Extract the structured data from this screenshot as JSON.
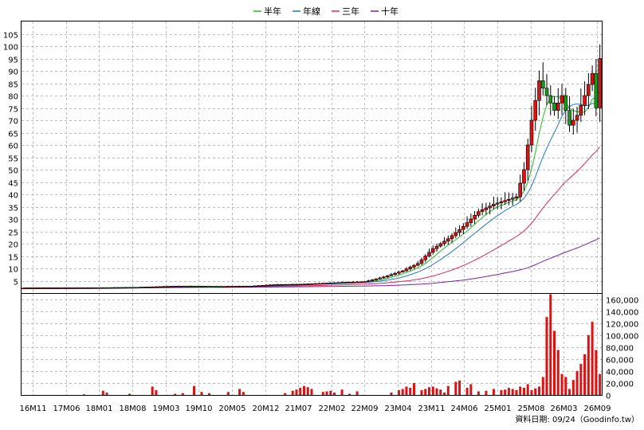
{
  "legend": [
    {
      "label": "半年",
      "color": "#22bb22"
    },
    {
      "label": "年線",
      "color": "#2277cc"
    },
    {
      "label": "三年",
      "color": "#dd2266"
    },
    {
      "label": "十年",
      "color": "#7722aa"
    }
  ],
  "footer": "資料日期: 09/24（Goodinfo.tw）",
  "chart_data": {
    "type": "candlestick+bar",
    "price_axis": {
      "ticks": [
        5,
        10,
        15,
        20,
        25,
        30,
        35,
        40,
        45,
        50,
        55,
        60,
        65,
        70,
        75,
        80,
        85,
        90,
        95,
        100,
        105
      ]
    },
    "volume_axis": {
      "ticks": [
        "0",
        "20,000",
        "40,000",
        "60,000",
        "80,000",
        "100,000",
        "120,000",
        "140,000",
        "160,000"
      ]
    },
    "x_labels": [
      "16M11",
      "17M06",
      "18M01",
      "18M08",
      "19M03",
      "19M10",
      "20M05",
      "20M12",
      "21M07",
      "22M02",
      "22M09",
      "23M04",
      "23M11",
      "24M06",
      "25M01",
      "25M08",
      "26M03",
      "26M09"
    ],
    "grid": true,
    "monthly": [
      {
        "o": 2.1,
        "h": 2.3,
        "l": 1.9,
        "c": 2.1,
        "v": 0
      },
      {
        "o": 2.1,
        "h": 2.3,
        "l": 1.9,
        "c": 2.1,
        "v": 0
      },
      {
        "o": 2.1,
        "h": 2.3,
        "l": 1.9,
        "c": 2.1,
        "v": 0
      },
      {
        "o": 2.1,
        "h": 2.3,
        "l": 1.9,
        "c": 2.1,
        "v": 0
      },
      {
        "o": 2.1,
        "h": 2.3,
        "l": 1.9,
        "c": 2.1,
        "v": 0
      },
      {
        "o": 2.1,
        "h": 2.3,
        "l": 1.9,
        "c": 2.1,
        "v": 0
      },
      {
        "o": 2.1,
        "h": 2.3,
        "l": 1.9,
        "c": 2.1,
        "v": 0
      },
      {
        "o": 2.1,
        "h": 2.3,
        "l": 1.9,
        "c": 2.1,
        "v": 0
      },
      {
        "o": 2.1,
        "h": 2.3,
        "l": 1.9,
        "c": 2.1,
        "v": 0
      },
      {
        "o": 2.1,
        "h": 2.3,
        "l": 1.9,
        "c": 2.1,
        "v": 0
      },
      {
        "o": 2.1,
        "h": 2.3,
        "l": 1.9,
        "c": 2.1,
        "v": 0
      },
      {
        "o": 2.1,
        "h": 2.3,
        "l": 1.9,
        "c": 2.1,
        "v": 0
      },
      {
        "o": 2.1,
        "h": 2.3,
        "l": 1.9,
        "c": 2.1,
        "v": 0
      },
      {
        "o": 2.1,
        "h": 2.3,
        "l": 1.9,
        "c": 2.1,
        "v": 0
      },
      {
        "o": 2.1,
        "h": 2.3,
        "l": 1.9,
        "c": 2.1,
        "v": 0
      },
      {
        "o": 2.1,
        "h": 2.3,
        "l": 1.9,
        "c": 2.1,
        "v": 0
      },
      {
        "o": 2.1,
        "h": 2.3,
        "l": 1.9,
        "c": 2.1,
        "v": 0
      },
      {
        "o": 2.1,
        "h": 2.3,
        "l": 1.9,
        "c": 2.1,
        "v": 0
      },
      {
        "o": 2.1,
        "h": 2.3,
        "l": 1.9,
        "c": 2.1,
        "v": 0
      },
      {
        "o": 2.1,
        "h": 2.3,
        "l": 1.9,
        "c": 2.1,
        "v": 0
      },
      {
        "o": 2.1,
        "h": 2.3,
        "l": 1.9,
        "c": 2.1,
        "v": 0
      },
      {
        "o": 2.1,
        "h": 2.3,
        "l": 1.9,
        "c": 2.1,
        "v": 0
      },
      {
        "o": 2.1,
        "h": 2.3,
        "l": 1.9,
        "c": 2.1,
        "v": 0
      },
      {
        "o": 2.1,
        "h": 2.3,
        "l": 1.9,
        "c": 2.1,
        "v": 0
      },
      {
        "o": 2.1,
        "h": 2.3,
        "l": 1.9,
        "c": 2.1,
        "v": 0
      },
      {
        "o": 2.1,
        "h": 2.3,
        "l": 1.9,
        "c": 2.1,
        "v": 0
      },
      {
        "o": 2.1,
        "h": 2.3,
        "l": 1.9,
        "c": 2.1,
        "v": 0
      },
      {
        "o": 2.1,
        "h": 2.3,
        "l": 1.9,
        "c": 2.1,
        "v": 0
      },
      {
        "o": 2.1,
        "h": 2.3,
        "l": 1.9,
        "c": 2.1,
        "v": 0
      },
      {
        "o": 2.1,
        "h": 2.3,
        "l": 1.9,
        "c": 2.1,
        "v": 0
      },
      {
        "o": 2.1,
        "h": 2.3,
        "l": 1.9,
        "c": 2.1,
        "v": 0
      },
      {
        "o": 2.1,
        "h": 2.3,
        "l": 1.9,
        "c": 2.1,
        "v": 0
      },
      {
        "o": 2.1,
        "h": 2.3,
        "l": 1.9,
        "c": 2.1,
        "v": 0
      },
      {
        "o": 2.1,
        "h": 2.3,
        "l": 1.9,
        "c": 2.1,
        "v": 0
      },
      {
        "o": 2.1,
        "h": 2.3,
        "l": 1.9,
        "c": 2.1,
        "v": 0
      },
      {
        "o": 2.1,
        "h": 2.3,
        "l": 1.9,
        "c": 2.1,
        "v": 0
      },
      {
        "o": 2.1,
        "h": 2.3,
        "l": 1.9,
        "c": 2.1,
        "v": 0
      },
      {
        "o": 2.1,
        "h": 2.3,
        "l": 1.9,
        "c": 2.1,
        "v": 0
      },
      {
        "o": 2.1,
        "h": 2.3,
        "l": 1.9,
        "c": 2.1,
        "v": 0
      },
      {
        "o": 2.1,
        "h": 2.3,
        "l": 1.9,
        "c": 2.1,
        "v": 0
      },
      {
        "o": 2.1,
        "h": 2.3,
        "l": 1.9,
        "c": 2.1,
        "v": 0
      },
      {
        "o": 2.1,
        "h": 2.3,
        "l": 1.9,
        "c": 2.1,
        "v": 0
      },
      {
        "o": 2.1,
        "h": 2.3,
        "l": 1.9,
        "c": 2.1,
        "v": 0
      },
      {
        "o": 2.1,
        "h": 2.3,
        "l": 1.9,
        "c": 2.1,
        "v": 0
      },
      {
        "o": 2.1,
        "h": 2.3,
        "l": 1.9,
        "c": 2.1,
        "v": 0
      },
      {
        "o": 2.1,
        "h": 2.3,
        "l": 1.9,
        "c": 2.1,
        "v": 0
      },
      {
        "o": 2.1,
        "h": 2.3,
        "l": 1.9,
        "c": 2.1,
        "v": 0
      },
      {
        "o": 2.1,
        "h": 2.3,
        "l": 1.9,
        "c": 2.1,
        "v": 0
      },
      {
        "o": 2.1,
        "h": 2.3,
        "l": 1.9,
        "c": 2.1,
        "v": 0
      },
      {
        "o": 2.1,
        "h": 2.3,
        "l": 1.9,
        "c": 2.1,
        "v": 0
      },
      {
        "o": 2.1,
        "h": 2.3,
        "l": 1.9,
        "c": 2.1,
        "v": 0
      },
      {
        "o": 2.1,
        "h": 2.3,
        "l": 1.9,
        "c": 2.1,
        "v": 0
      },
      {
        "o": 2.1,
        "h": 2.3,
        "l": 1.9,
        "c": 2.1,
        "v": 0
      },
      {
        "o": 2.1,
        "h": 2.3,
        "l": 1.9,
        "c": 2.1,
        "v": 0
      },
      {
        "o": 2.1,
        "h": 2.3,
        "l": 1.9,
        "c": 2.1,
        "v": 0
      },
      {
        "o": 2.1,
        "h": 2.3,
        "l": 1.9,
        "c": 2.1,
        "v": 0
      },
      {
        "o": 2.1,
        "h": 2.3,
        "l": 1.9,
        "c": 2.1,
        "v": 0
      },
      {
        "o": 2.1,
        "h": 2.3,
        "l": 1.9,
        "c": 2.1,
        "v": 0
      },
      {
        "o": 2.1,
        "h": 2.3,
        "l": 1.9,
        "c": 2.1,
        "v": 0
      },
      {
        "o": 2.1,
        "h": 2.3,
        "l": 1.9,
        "c": 2.1,
        "v": 0
      }
    ]
  }
}
